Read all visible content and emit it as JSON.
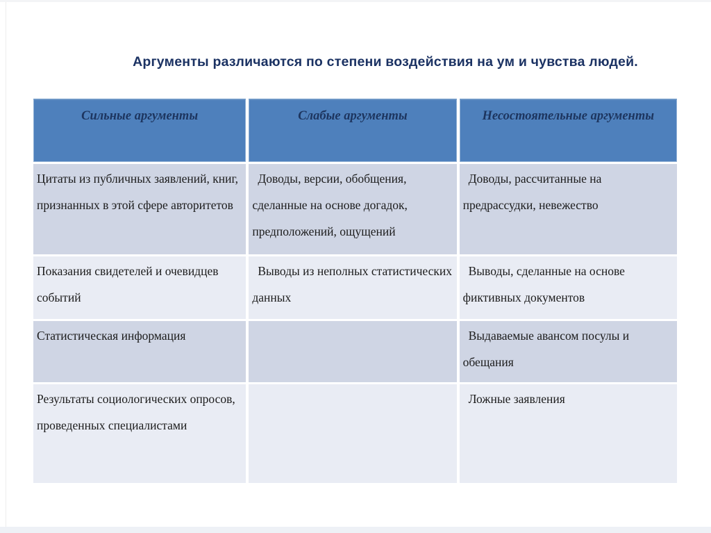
{
  "slide": {
    "title": "Аргументы различаются по степени воздействия на ум и чувства людей."
  },
  "table": {
    "headers": [
      "Сильные аргументы",
      "Слабые аргументы",
      "Несостоятельные аргументы"
    ],
    "rows": [
      [
        "Цитаты из публичных заявлений, книг, признанных в этой сфере авторитетов",
        "Доводы, версии, обобщения, сделанные на основе догадок, предположений, ощущений",
        "Доводы, рассчитанные на предрассудки, невежество"
      ],
      [
        "Показания свидетелей и очевидцев событий",
        "Выводы из неполных статистических данных",
        "Выводы, сделанные на основе фиктивных документов"
      ],
      [
        "Статистическая информация",
        "",
        "Выдаваемые авансом посулы и обещания"
      ],
      [
        "Результаты социологических опросов, проведенных специалистами",
        "",
        "Ложные заявления"
      ]
    ]
  },
  "colors": {
    "header_fill": "#4e80bc",
    "band_dark": "#cfd5e4",
    "band_light": "#e9ecf4",
    "title_text": "#1b3263",
    "header_text": "#1d355f",
    "cell_text": "#1c1c1c"
  }
}
